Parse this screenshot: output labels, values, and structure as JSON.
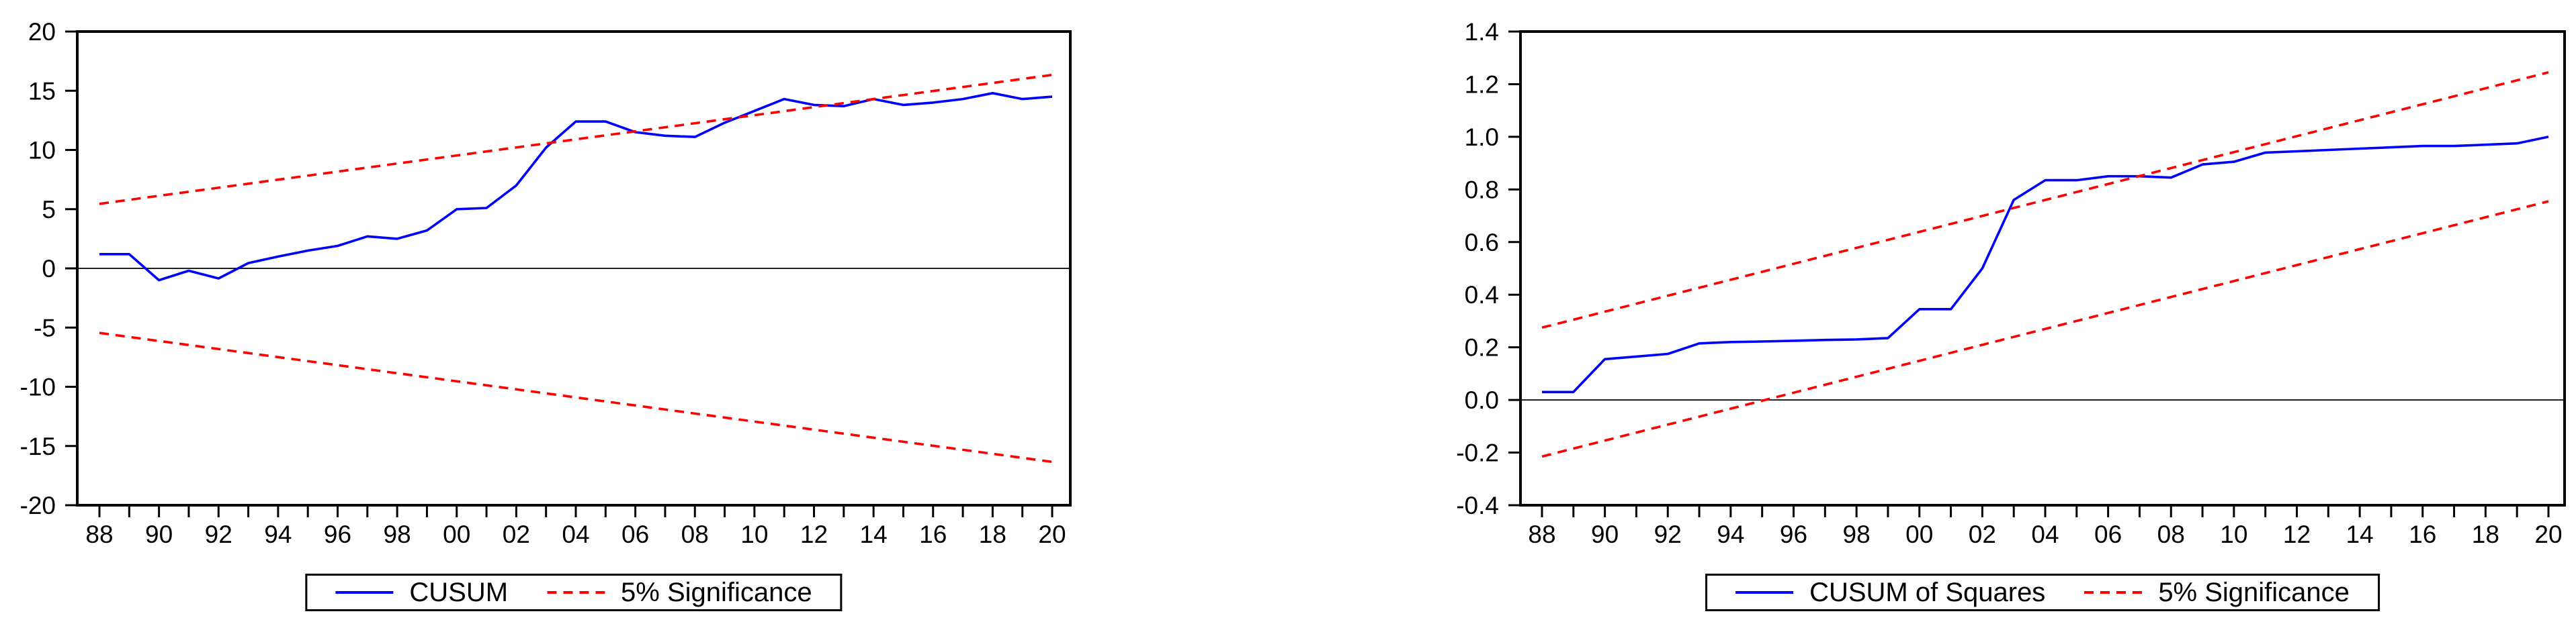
{
  "page": {
    "background": "#ffffff",
    "axis_color": "#000000"
  },
  "chart_data": [
    {
      "type": "line",
      "name": "CUSUM stability test",
      "title": "",
      "xlabel": "",
      "ylabel": "",
      "xlim": [
        1988,
        2020
      ],
      "ylim": [
        -20,
        20
      ],
      "grid": false,
      "zero_line": 0,
      "legend_position": "bottom",
      "x": [
        1988,
        1989,
        1990,
        1991,
        1992,
        1993,
        1994,
        1995,
        1996,
        1997,
        1998,
        1999,
        2000,
        2001,
        2002,
        2003,
        2004,
        2005,
        2006,
        2007,
        2008,
        2009,
        2010,
        2011,
        2012,
        2013,
        2014,
        2015,
        2016,
        2017,
        2018,
        2019,
        2020
      ],
      "x_tick_labels": [
        "88",
        "90",
        "92",
        "94",
        "96",
        "98",
        "00",
        "02",
        "04",
        "06",
        "08",
        "10",
        "12",
        "14",
        "16",
        "18",
        "20"
      ],
      "y_ticks": [
        20,
        15,
        10,
        5,
        0,
        -5,
        -10,
        -15,
        -20
      ],
      "y_tick_labels": [
        "20",
        "15",
        "10",
        "5",
        "0",
        "-5",
        "-10",
        "-15",
        "-20"
      ],
      "series": [
        {
          "name": "CUSUM",
          "color": "#0000ff",
          "style": "solid",
          "values": [
            1.2,
            1.2,
            -1.0,
            -0.2,
            -0.85,
            0.45,
            1.0,
            1.5,
            1.9,
            2.7,
            2.5,
            3.2,
            5.0,
            5.1,
            7.0,
            10.2,
            12.4,
            12.4,
            11.5,
            11.2,
            11.1,
            12.3,
            13.3,
            14.3,
            13.8,
            13.7,
            14.3,
            13.8,
            14.0,
            14.3,
            14.8,
            14.3,
            14.5
          ]
        },
        {
          "name": "5% Significance upper",
          "color": "#ff0000",
          "style": "dashed",
          "x": [
            1988,
            2020
          ],
          "values": [
            5.45,
            16.34
          ]
        },
        {
          "name": "5% Significance lower",
          "color": "#ff0000",
          "style": "dashed",
          "x": [
            1988,
            2020
          ],
          "values": [
            -5.45,
            -16.34
          ]
        }
      ],
      "legend": [
        {
          "label": "CUSUM",
          "color": "#0000ff",
          "dash": false
        },
        {
          "label": "5% Significance",
          "color": "#ff0000",
          "dash": true
        }
      ]
    },
    {
      "type": "line",
      "name": "CUSUM of Squares stability test",
      "title": "",
      "xlabel": "",
      "ylabel": "",
      "xlim": [
        1988,
        2020
      ],
      "ylim": [
        -0.4,
        1.4
      ],
      "grid": false,
      "zero_line": 0,
      "legend_position": "bottom",
      "x": [
        1988,
        1989,
        1990,
        1991,
        1992,
        1993,
        1994,
        1995,
        1996,
        1997,
        1998,
        1999,
        2000,
        2001,
        2002,
        2003,
        2004,
        2005,
        2006,
        2007,
        2008,
        2009,
        2010,
        2011,
        2012,
        2013,
        2014,
        2015,
        2016,
        2017,
        2018,
        2019,
        2020
      ],
      "x_tick_labels": [
        "88",
        "90",
        "92",
        "94",
        "96",
        "98",
        "00",
        "02",
        "04",
        "06",
        "08",
        "10",
        "12",
        "14",
        "16",
        "18",
        "20"
      ],
      "y_ticks": [
        1.4,
        1.2,
        1.0,
        0.8,
        0.6,
        0.4,
        0.2,
        0.0,
        -0.2,
        -0.4
      ],
      "y_tick_labels": [
        "1.4",
        "1.2",
        "1.0",
        "0.8",
        "0.6",
        "0.4",
        "0.2",
        "0.0",
        "-0.2",
        "-0.4"
      ],
      "series": [
        {
          "name": "CUSUM of Squares",
          "color": "#0000ff",
          "style": "solid",
          "values": [
            0.03,
            0.03,
            0.155,
            0.165,
            0.175,
            0.215,
            0.22,
            0.222,
            0.225,
            0.228,
            0.23,
            0.235,
            0.345,
            0.345,
            0.5,
            0.76,
            0.835,
            0.835,
            0.85,
            0.85,
            0.845,
            0.895,
            0.905,
            0.94,
            0.945,
            0.95,
            0.955,
            0.96,
            0.965,
            0.965,
            0.97,
            0.975,
            1.0
          ]
        },
        {
          "name": "5% Significance upper",
          "color": "#ff0000",
          "style": "dashed",
          "x": [
            1988,
            2020
          ],
          "values": [
            0.275,
            1.245
          ]
        },
        {
          "name": "5% Significance lower",
          "color": "#ff0000",
          "style": "dashed",
          "x": [
            1988,
            2020
          ],
          "values": [
            -0.215,
            0.755
          ]
        }
      ],
      "legend": [
        {
          "label": "CUSUM of Squares",
          "color": "#0000ff",
          "dash": false
        },
        {
          "label": "5% Significance",
          "color": "#ff0000",
          "dash": true
        }
      ]
    }
  ]
}
